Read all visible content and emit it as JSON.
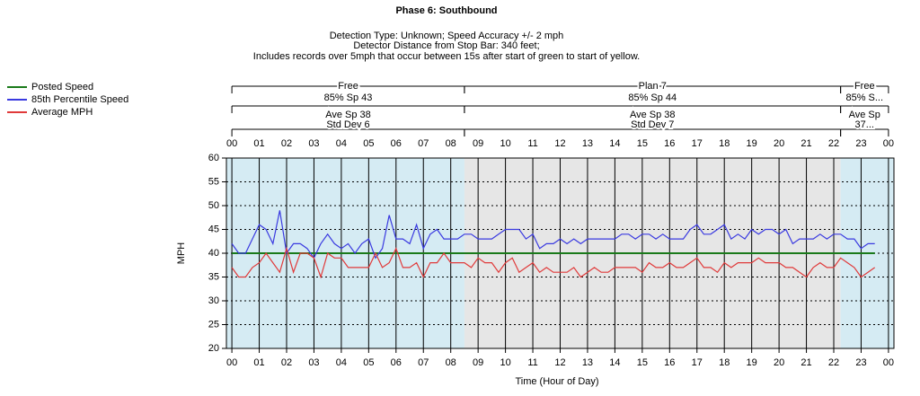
{
  "chart_data": {
    "type": "line",
    "title": "Phase 6: Southbound",
    "subtitle": [
      "Detection Type: Unknown; Speed Accuracy +/- 2 mph",
      "Detector Distance from Stop Bar: 340 feet;",
      "Includes records over 5mph that occur between 15s after start of green to start of yellow."
    ],
    "x_label": "Time (Hour of Day)",
    "y_label": "MPH",
    "xlim": [
      -0.2,
      24.2
    ],
    "ylim": [
      20,
      60
    ],
    "yticks": [
      20,
      25,
      30,
      35,
      40,
      45,
      50,
      55,
      60
    ],
    "xticks": [
      {
        "value": 0,
        "label": "00"
      },
      {
        "value": 1,
        "label": "01"
      },
      {
        "value": 2,
        "label": "02"
      },
      {
        "value": 3,
        "label": "03"
      },
      {
        "value": 4,
        "label": "04"
      },
      {
        "value": 5,
        "label": "05"
      },
      {
        "value": 6,
        "label": "06"
      },
      {
        "value": 7,
        "label": "07"
      },
      {
        "value": 8,
        "label": "08"
      },
      {
        "value": 9,
        "label": "09"
      },
      {
        "value": 10,
        "label": "10"
      },
      {
        "value": 11,
        "label": "11"
      },
      {
        "value": 12,
        "label": "12"
      },
      {
        "value": 13,
        "label": "13"
      },
      {
        "value": 14,
        "label": "14"
      },
      {
        "value": 15,
        "label": "15"
      },
      {
        "value": 16,
        "label": "16"
      },
      {
        "value": 17,
        "label": "17"
      },
      {
        "value": 18,
        "label": "18"
      },
      {
        "value": 19,
        "label": "19"
      },
      {
        "value": 20,
        "label": "20"
      },
      {
        "value": 21,
        "label": "21"
      },
      {
        "value": 22,
        "label": "22"
      },
      {
        "value": 23,
        "label": "23"
      },
      {
        "value": 24,
        "label": "00"
      }
    ],
    "x": [
      0,
      0.25,
      0.5,
      0.75,
      1,
      1.25,
      1.5,
      1.75,
      2,
      2.25,
      2.5,
      2.75,
      3,
      3.25,
      3.5,
      3.75,
      4,
      4.25,
      4.5,
      4.75,
      5,
      5.25,
      5.5,
      5.75,
      6,
      6.25,
      6.5,
      6.75,
      7,
      7.25,
      7.5,
      7.75,
      8,
      8.25,
      8.5,
      8.75,
      9,
      9.25,
      9.5,
      9.75,
      10,
      10.25,
      10.5,
      10.75,
      11,
      11.25,
      11.5,
      11.75,
      12,
      12.25,
      12.5,
      12.75,
      13,
      13.25,
      13.5,
      13.75,
      14,
      14.25,
      14.5,
      14.75,
      15,
      15.25,
      15.5,
      15.75,
      16,
      16.25,
      16.5,
      16.75,
      17,
      17.25,
      17.5,
      17.75,
      18,
      18.25,
      18.5,
      18.75,
      19,
      19.25,
      19.5,
      19.75,
      20,
      20.25,
      20.5,
      20.75,
      21,
      21.25,
      21.5,
      21.75,
      22,
      22.25,
      22.5,
      22.75,
      23,
      23.25,
      23.5
    ],
    "series": [
      {
        "name": "Posted Speed",
        "color": "#1a7a1a",
        "x": [
          0,
          23.5
        ],
        "values": [
          40,
          40
        ]
      },
      {
        "name": "85th Percentile Speed",
        "color": "#3a3ae0",
        "values": [
          42,
          40,
          40,
          43,
          46,
          45,
          42,
          49,
          40,
          42,
          42,
          41,
          39,
          42,
          44,
          42,
          41,
          42,
          40,
          42,
          43,
          39,
          41,
          48,
          43,
          43,
          42,
          46,
          41,
          44,
          45,
          43,
          43,
          43,
          44,
          44,
          43,
          43,
          43,
          44,
          45,
          45,
          45,
          43,
          44,
          41,
          42,
          42,
          43,
          42,
          43,
          42,
          43,
          43,
          43,
          43,
          43,
          44,
          44,
          43,
          44,
          44,
          43,
          44,
          43,
          43,
          43,
          45,
          46,
          44,
          44,
          45,
          46,
          43,
          44,
          43,
          45,
          44,
          45,
          45,
          44,
          45,
          42,
          43,
          43,
          43,
          44,
          43,
          44,
          44,
          43,
          43,
          41,
          42,
          42
        ]
      },
      {
        "name": "Average MPH",
        "color": "#e03a3a",
        "values": [
          37,
          35,
          35,
          37,
          38,
          40,
          38,
          36,
          41,
          36,
          40,
          40,
          39,
          35,
          40,
          39,
          39,
          37,
          37,
          37,
          37,
          40,
          37,
          38,
          41,
          37,
          37,
          38,
          35,
          38,
          38,
          40,
          38,
          38,
          38,
          37,
          39,
          38,
          38,
          36,
          38,
          39,
          36,
          37,
          38,
          36,
          37,
          36,
          36,
          36,
          37,
          35,
          36,
          37,
          36,
          36,
          37,
          37,
          37,
          37,
          36,
          38,
          37,
          37,
          38,
          37,
          37,
          38,
          39,
          37,
          37,
          36,
          38,
          37,
          38,
          38,
          38,
          39,
          38,
          38,
          38,
          37,
          37,
          36,
          35,
          37,
          38,
          37,
          37,
          39,
          38,
          37,
          35,
          36,
          37
        ]
      }
    ],
    "plans": [
      {
        "start": 0,
        "end": 8.5,
        "name": "Free",
        "p85": "85% Sp 43",
        "ave": "Ave Sp 38",
        "std": "Std Dev 6",
        "color": "#d5ebf3"
      },
      {
        "start": 8.5,
        "end": 22.25,
        "name": "Plan 7",
        "p85": "85% Sp 44",
        "ave": "Ave Sp 38",
        "std": "Std Dev 7",
        "color": "#e6e6e6"
      },
      {
        "start": 22.25,
        "end": 24,
        "name": "Free",
        "p85": "85% S...",
        "ave": "Ave Sp",
        "std": "37...",
        "color": "#d5ebf3"
      }
    ],
    "grid": true
  }
}
